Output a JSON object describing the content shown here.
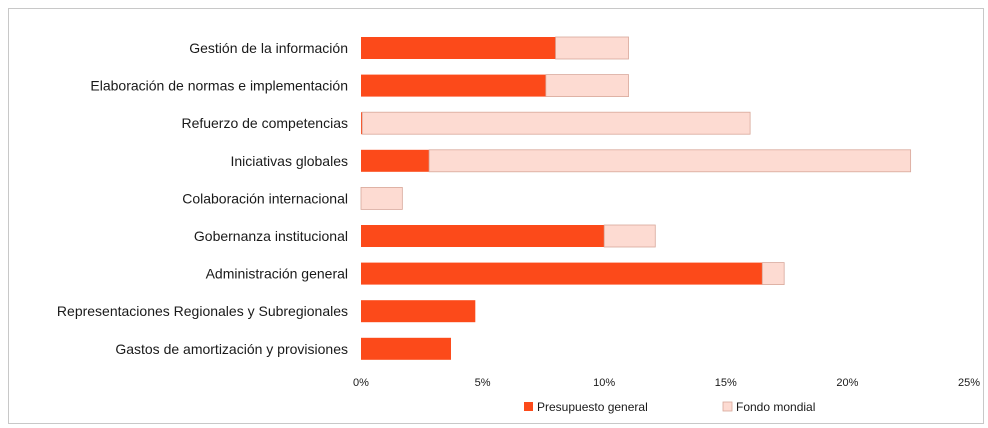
{
  "chart_data": {
    "type": "bar",
    "orientation": "horizontal",
    "stacked": true,
    "title": "",
    "xlabel": "",
    "ylabel": "",
    "xlim": [
      0,
      25
    ],
    "x_ticks": [
      "0%",
      "5%",
      "10%",
      "15%",
      "20%",
      "25%"
    ],
    "grid": false,
    "legend_position": "bottom",
    "categories": [
      "Gestión de la información",
      "Elaboración de normas e implementación",
      "Refuerzo de competencias",
      "Iniciativas globales",
      "Colaboración internacional",
      "Gobernanza institucional",
      "Administración general",
      "Representaciones Regionales y Subregionales",
      "Gastos de amortización y provisiones"
    ],
    "series": [
      {
        "name": "Presupuesto general",
        "color": "#fc4a1a",
        "values": [
          8.0,
          7.6,
          0.05,
          2.8,
          0.0,
          10.0,
          16.5,
          4.7,
          3.7
        ]
      },
      {
        "name": "Fondo mondial",
        "color": "#fddbd2",
        "values": [
          3.0,
          3.4,
          15.95,
          19.8,
          1.7,
          2.1,
          0.9,
          0.0,
          0.0
        ]
      }
    ]
  }
}
